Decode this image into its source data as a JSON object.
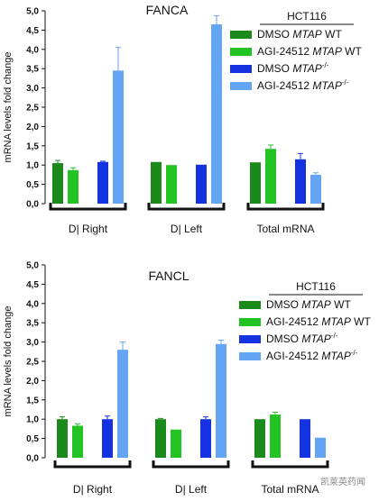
{
  "chart_data": [
    {
      "type": "bar",
      "title": "FANCA",
      "ylabel": "mRNA levels fold change",
      "ylim": [
        0,
        5
      ],
      "yticks": [
        "0,0",
        "0,5",
        "1,0",
        "1,5",
        "2,0",
        "2,5",
        "3,0",
        "3,5",
        "4,0",
        "4,5",
        "5,0"
      ],
      "legend_header": "HCT116",
      "categories": [
        "DI Right",
        "DI Left",
        "Total mRNA"
      ],
      "category_labels": [
        "D| Right",
        "D| Left",
        "Total mRNA"
      ],
      "series": [
        {
          "name": "DMSO MTAP WT",
          "name_plain": "DMSO ",
          "name_italic": "MTAP",
          "name_suffix": " WT",
          "color": "#1a8a1a",
          "values": [
            1.05,
            1.08,
            1.07
          ],
          "errors": [
            0.07,
            0.0,
            0.0
          ]
        },
        {
          "name": "AGI-24512 MTAP WT",
          "name_plain": "AGI-24512 ",
          "name_italic": "MTAP",
          "name_suffix": " WT",
          "color": "#22c322",
          "values": [
            0.87,
            1.0,
            1.42
          ],
          "errors": [
            0.06,
            0.0,
            0.1
          ]
        },
        {
          "name": "DMSO MTAP-/-",
          "name_plain": "DMSO ",
          "name_italic": "MTAP",
          "name_suffix": "-/-",
          "color": "#1432e0",
          "values": [
            1.08,
            1.01,
            1.15
          ],
          "errors": [
            0.02,
            0.0,
            0.15
          ]
        },
        {
          "name": "AGI-24512 MTAP-/-",
          "name_plain": "AGI-24512 ",
          "name_italic": "MTAP",
          "name_suffix": "-/-",
          "color": "#63a5f2",
          "values": [
            3.45,
            4.65,
            0.75
          ],
          "errors": [
            0.6,
            0.22,
            0.05
          ]
        }
      ]
    },
    {
      "type": "bar",
      "title": "FANCL",
      "ylabel": "mRNA levels fold change",
      "ylim": [
        0,
        5
      ],
      "yticks": [
        "0,0",
        "0,5",
        "1,0",
        "1,5",
        "2,0",
        "2,5",
        "3,0",
        "3,5",
        "4,0",
        "4,5",
        "5,0"
      ],
      "legend_header": "HCT116",
      "categories": [
        "DI Right",
        "DI Left",
        "Total mRNA"
      ],
      "category_labels": [
        "D| Right",
        "D| Left",
        "Total mRNA"
      ],
      "series": [
        {
          "name": "DMSO MTAP WT",
          "name_plain": "DMSO ",
          "name_italic": "MTAP",
          "name_suffix": " WT",
          "color": "#1a8a1a",
          "values": [
            1.0,
            1.0,
            1.0
          ],
          "errors": [
            0.06,
            0.02,
            0.0
          ]
        },
        {
          "name": "AGI-24512 MTAP WT",
          "name_plain": "AGI-24512 ",
          "name_italic": "MTAP",
          "name_suffix": " WT",
          "color": "#22c322",
          "values": [
            0.83,
            0.73,
            1.12
          ],
          "errors": [
            0.05,
            0.0,
            0.06
          ]
        },
        {
          "name": "DMSO MTAP-/-",
          "name_plain": "DMSO ",
          "name_italic": "MTAP",
          "name_suffix": "-/-",
          "color": "#1432e0",
          "values": [
            1.0,
            1.0,
            1.0
          ],
          "errors": [
            0.08,
            0.06,
            0.0
          ]
        },
        {
          "name": "AGI-24512 MTAP-/-",
          "name_plain": "AGI-24512 ",
          "name_italic": "MTAP",
          "name_suffix": "-/-",
          "color": "#63a5f2",
          "values": [
            2.8,
            2.95,
            0.52
          ],
          "errors": [
            0.2,
            0.1,
            0.0
          ]
        }
      ]
    }
  ],
  "watermark": "凯莱英药闻"
}
